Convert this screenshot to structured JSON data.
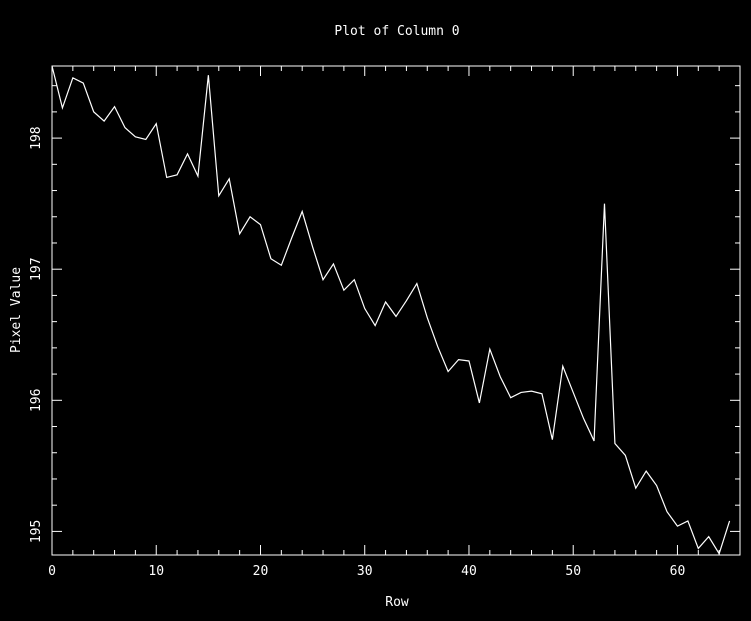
{
  "chart_data": {
    "type": "line",
    "title": "Plot of Column 0",
    "xlabel": "Row",
    "ylabel": "Pixel Value",
    "xlim": [
      0,
      66
    ],
    "ylim": [
      194.82,
      198.55
    ],
    "x_ticks": [
      0,
      10,
      20,
      30,
      40,
      50,
      60
    ],
    "y_ticks": [
      195,
      196,
      197,
      198
    ],
    "grid": false,
    "colors": {
      "background": "#000000",
      "foreground": "#ffffff"
    },
    "x": [
      0,
      1,
      2,
      3,
      4,
      5,
      6,
      7,
      8,
      9,
      10,
      11,
      12,
      13,
      14,
      15,
      16,
      17,
      18,
      19,
      20,
      21,
      22,
      23,
      24,
      25,
      26,
      27,
      28,
      29,
      30,
      31,
      32,
      33,
      34,
      35,
      36,
      37,
      38,
      39,
      40,
      41,
      42,
      43,
      44,
      45,
      46,
      47,
      48,
      49,
      50,
      51,
      52,
      53,
      54,
      55,
      56,
      57,
      58,
      59,
      60,
      61,
      62,
      63,
      64,
      65
    ],
    "y": [
      198.55,
      198.23,
      198.46,
      198.42,
      198.2,
      198.13,
      198.24,
      198.08,
      198.01,
      197.99,
      198.11,
      197.7,
      197.72,
      197.88,
      197.71,
      198.48,
      197.56,
      197.69,
      197.27,
      197.4,
      197.34,
      197.08,
      197.03,
      197.24,
      197.44,
      197.17,
      196.92,
      197.04,
      196.84,
      196.92,
      196.7,
      196.57,
      196.75,
      196.64,
      196.76,
      196.89,
      196.63,
      196.41,
      196.22,
      196.31,
      196.3,
      195.98,
      196.39,
      196.18,
      196.02,
      196.06,
      196.07,
      196.05,
      195.7,
      196.26,
      196.06,
      195.86,
      195.69,
      197.5,
      195.67,
      195.58,
      195.33,
      195.46,
      195.35,
      195.15,
      195.04,
      195.08,
      194.87,
      194.96,
      194.83,
      195.08
    ]
  }
}
